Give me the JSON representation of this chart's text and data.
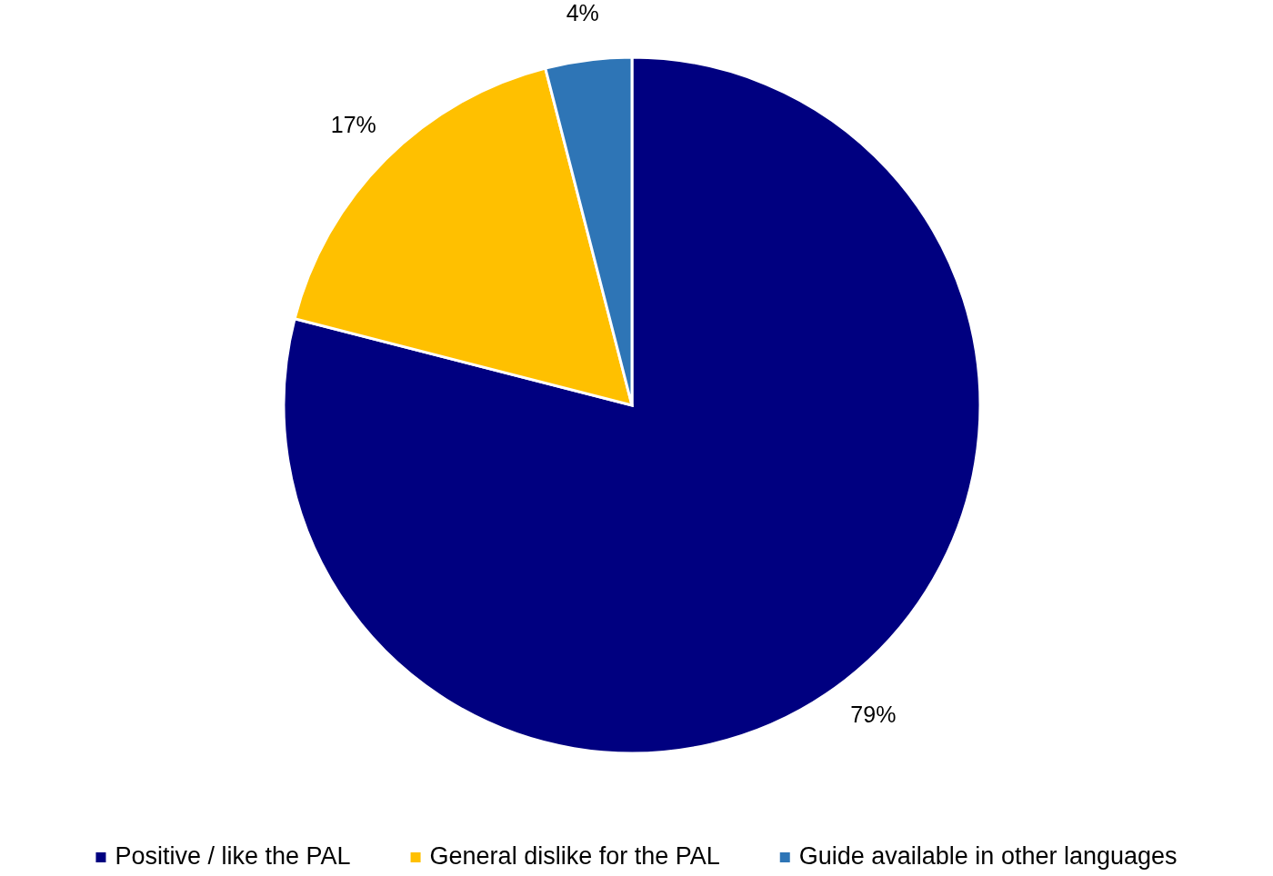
{
  "chart_data": {
    "type": "pie",
    "categories": [
      "Positive / like the PAL",
      "General dislike for the PAL",
      "Guide available in other languages"
    ],
    "values": [
      79,
      17,
      4
    ],
    "colors": [
      "#000080",
      "#ffc000",
      "#2e75b6"
    ],
    "value_labels": [
      "79%",
      "17%",
      "4%"
    ],
    "legend": "bottom"
  }
}
